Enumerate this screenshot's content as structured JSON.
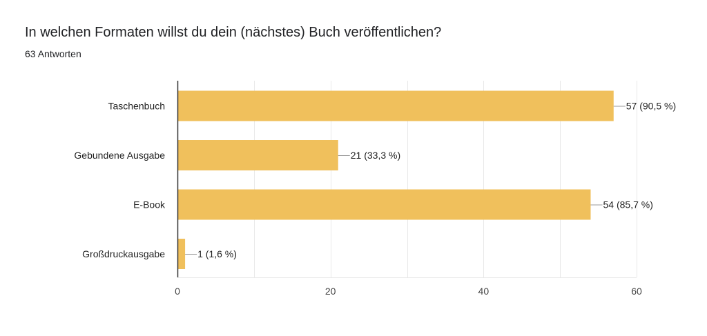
{
  "question": {
    "title": "In welchen Formaten willst du dein (nächstes) Buch veröffentlichen?",
    "response_count": "63 Antworten"
  },
  "colors": {
    "bar": "#f0c05c",
    "grid": "#e8e8e8",
    "axis": "#333333",
    "leader": "#999999"
  },
  "chart_data": {
    "type": "bar",
    "orientation": "horizontal",
    "title": "In welchen Formaten willst du dein (nächstes) Buch veröffentlichen?",
    "subtitle": "63 Antworten",
    "categories": [
      "Taschenbuch",
      "Gebundene Ausgabe",
      "E-Book",
      "Großdruckausgabe"
    ],
    "values": [
      57,
      21,
      54,
      1
    ],
    "data_labels": [
      "57 (90,5 %)",
      "21 (33,3 %)",
      "54 (85,7 %)",
      "1 (1,6 %)"
    ],
    "xlim": [
      0,
      60
    ],
    "xticks": [
      0,
      20,
      40,
      60
    ],
    "xtick_labels": [
      "0",
      "20",
      "40",
      "60"
    ],
    "grid": true,
    "legend": "none"
  }
}
